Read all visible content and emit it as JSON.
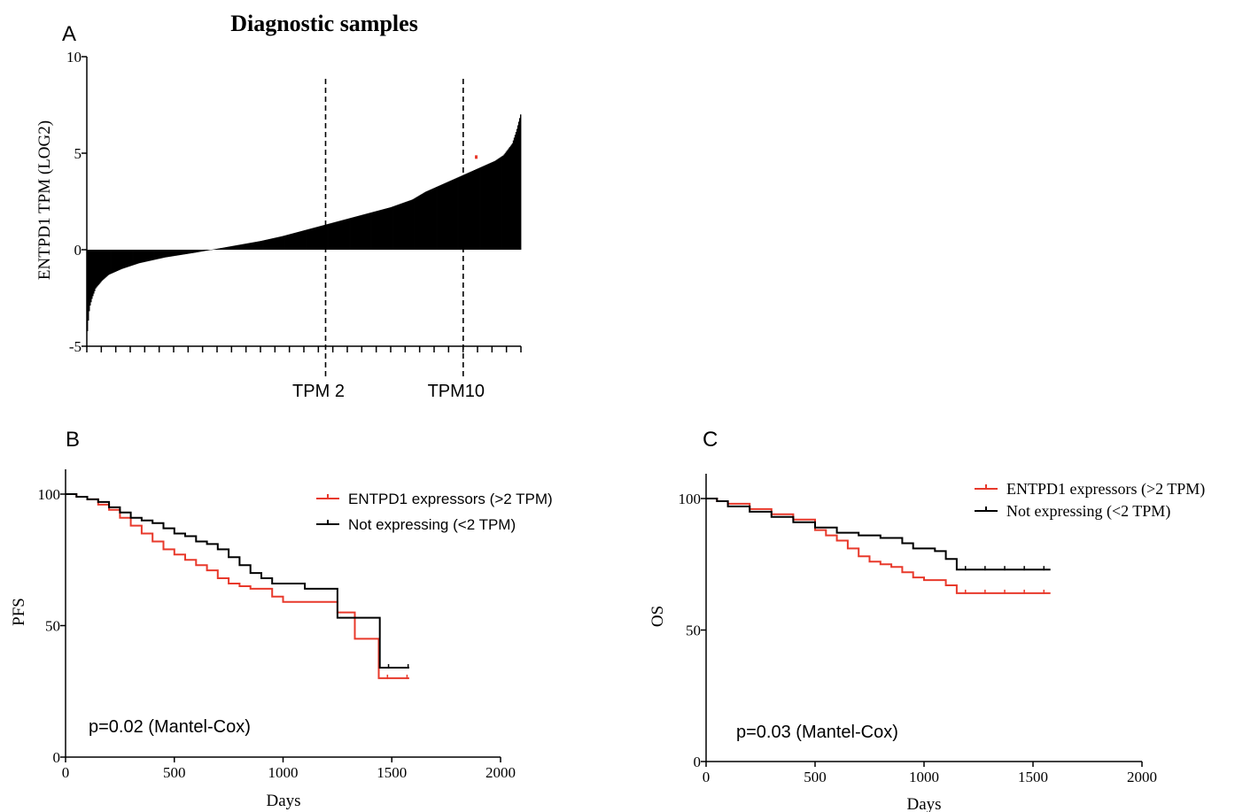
{
  "chart_data": [
    {
      "panel": "A",
      "type": "bar",
      "title": "Diagnostic samples",
      "xlabel": "",
      "ylabel": "ENTPD1 TPM (LOG2)",
      "ylim": [
        -5,
        10
      ],
      "yticks": [
        -5,
        0,
        5,
        10
      ],
      "n_samples": 480,
      "profile_rank_fraction": [
        0,
        0.003,
        0.006,
        0.012,
        0.02,
        0.035,
        0.05,
        0.08,
        0.12,
        0.18,
        0.25,
        0.3,
        0.35,
        0.4,
        0.45,
        0.5,
        0.55,
        0.6,
        0.65,
        0.7,
        0.75,
        0.78,
        0.82,
        0.86,
        0.9,
        0.94,
        0.96,
        0.98,
        0.99,
        1.0
      ],
      "profile_values": [
        -4.5,
        -3.7,
        -3.0,
        -2.5,
        -2.0,
        -1.6,
        -1.3,
        -1.0,
        -0.7,
        -0.4,
        -0.15,
        0.05,
        0.25,
        0.45,
        0.7,
        1.0,
        1.3,
        1.6,
        1.9,
        2.2,
        2.6,
        3.0,
        3.4,
        3.8,
        4.2,
        4.6,
        4.9,
        5.5,
        6.2,
        7.1
      ],
      "vlines": [
        {
          "label": "TPM 2",
          "rank_fraction": 0.55
        },
        {
          "label": "TPM10",
          "rank_fraction": 0.867
        }
      ],
      "highlight_point": {
        "rank_fraction": 0.897,
        "value": 4.8,
        "color": "#e8392b"
      },
      "bar_color": "#000000"
    },
    {
      "panel": "B",
      "type": "line",
      "xlabel": "Days",
      "ylabel": "PFS",
      "xlim": [
        0,
        2000
      ],
      "ylim": [
        0,
        100
      ],
      "xticks": [
        0,
        500,
        1000,
        1500,
        2000
      ],
      "yticks": [
        0,
        50,
        100
      ],
      "legend_position": "top-right",
      "annotation": "p=0.02 (Mantel-Cox)",
      "series": [
        {
          "name": "ENTPD1 expressors (>2 TPM)",
          "color": "#e8392b",
          "x": [
            0,
            50,
            100,
            150,
            200,
            250,
            300,
            350,
            400,
            450,
            500,
            550,
            600,
            650,
            700,
            750,
            800,
            850,
            900,
            950,
            1000,
            1100,
            1200,
            1250,
            1300,
            1330,
            1380,
            1430,
            1440,
            1580
          ],
          "y": [
            100,
            99,
            98,
            96,
            94,
            91,
            88,
            85,
            82,
            79,
            77,
            75,
            73,
            71,
            68,
            66,
            65,
            64,
            64,
            61,
            59,
            59,
            59,
            55,
            55,
            45,
            45,
            45,
            30,
            30
          ]
        },
        {
          "name": "Not expressing (<2 TPM)",
          "color": "#000000",
          "x": [
            0,
            50,
            100,
            150,
            200,
            250,
            300,
            350,
            400,
            450,
            500,
            550,
            600,
            650,
            700,
            750,
            800,
            850,
            900,
            950,
            1000,
            1100,
            1200,
            1250,
            1300,
            1350,
            1440,
            1445,
            1580
          ],
          "y": [
            100,
            99,
            98,
            97,
            95,
            93,
            91,
            90,
            89,
            87,
            85,
            84,
            82,
            81,
            79,
            76,
            73,
            70,
            68,
            66,
            66,
            64,
            64,
            53,
            53,
            53,
            53,
            34,
            34
          ]
        }
      ]
    },
    {
      "panel": "C",
      "type": "line",
      "xlabel": "Days",
      "ylabel": "OS",
      "xlim": [
        0,
        2000
      ],
      "ylim": [
        0,
        100
      ],
      "xticks": [
        0,
        500,
        1000,
        1500,
        2000
      ],
      "yticks": [
        0,
        50,
        100
      ],
      "legend_position": "top-right",
      "annotation": "p=0.03  (Mantel-Cox)",
      "series": [
        {
          "name": "ENTPD1 expressors (>2 TPM)",
          "color": "#e8392b",
          "x": [
            0,
            50,
            100,
            200,
            300,
            400,
            500,
            550,
            600,
            650,
            700,
            750,
            800,
            850,
            900,
            950,
            1000,
            1050,
            1100,
            1150,
            1580
          ],
          "y": [
            100,
            99,
            98,
            96,
            94,
            92,
            88,
            86,
            84,
            81,
            78,
            76,
            75,
            74,
            72,
            70,
            69,
            69,
            67,
            64,
            64
          ]
        },
        {
          "name": "Not expressing (<2 TPM)",
          "color": "#000000",
          "x": [
            0,
            50,
            100,
            200,
            300,
            400,
            500,
            600,
            700,
            800,
            900,
            950,
            1000,
            1050,
            1100,
            1150,
            1580
          ],
          "y": [
            100,
            99,
            97,
            95,
            93,
            91,
            89,
            87,
            86,
            85,
            83,
            81,
            81,
            80,
            77,
            73,
            73
          ]
        }
      ]
    }
  ],
  "panel_labels": [
    "A",
    "B",
    "C"
  ]
}
